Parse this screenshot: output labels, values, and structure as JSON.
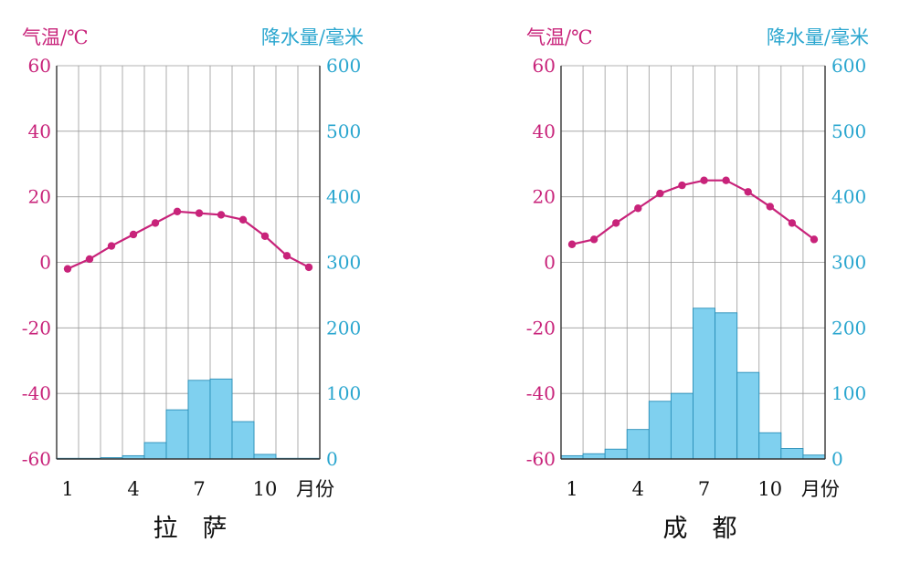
{
  "colors": {
    "temperature": "#c8237a",
    "precipitation": "#2aa6cf",
    "bar_fill": "#7fd0ef",
    "bar_stroke": "#2a8fb8",
    "grid": "#9a9a9a",
    "text": "#111111"
  },
  "chart_data": [
    {
      "type": "bar",
      "title": "拉　萨",
      "temp_axis_label": "气温/℃",
      "precip_axis_label": "降水量/毫米",
      "x_unit_label": "月份",
      "x_tick_labels": [
        "1",
        "4",
        "7",
        "10"
      ],
      "x_tick_months": [
        1,
        4,
        7,
        10
      ],
      "temp_ylim": [
        -60,
        60
      ],
      "temp_ticks": [
        60,
        40,
        20,
        0,
        -20,
        -40,
        -60
      ],
      "precip_ylim": [
        0,
        600
      ],
      "precip_ticks": [
        600,
        500,
        400,
        300,
        200,
        100,
        0
      ],
      "grid": true,
      "months": [
        1,
        2,
        3,
        4,
        5,
        6,
        7,
        8,
        9,
        10,
        11,
        12
      ],
      "series": [
        {
          "kind": "line",
          "values": [
            -2,
            1,
            5,
            8.5,
            12,
            15.5,
            15,
            14.5,
            13,
            8,
            2,
            -1.5
          ]
        },
        {
          "kind": "bar",
          "values": [
            1,
            1,
            2,
            5,
            25,
            75,
            120,
            122,
            57,
            7,
            1,
            1
          ]
        }
      ]
    },
    {
      "type": "bar",
      "title": "成　都",
      "temp_axis_label": "气温/℃",
      "precip_axis_label": "降水量/毫米",
      "x_unit_label": "月份",
      "x_tick_labels": [
        "1",
        "4",
        "7",
        "10"
      ],
      "x_tick_months": [
        1,
        4,
        7,
        10
      ],
      "temp_ylim": [
        -60,
        60
      ],
      "temp_ticks": [
        60,
        40,
        20,
        0,
        -20,
        -40,
        -60
      ],
      "precip_ylim": [
        0,
        600
      ],
      "precip_ticks": [
        600,
        500,
        400,
        300,
        200,
        100,
        0
      ],
      "grid": true,
      "months": [
        1,
        2,
        3,
        4,
        5,
        6,
        7,
        8,
        9,
        10,
        11,
        12
      ],
      "series": [
        {
          "kind": "line",
          "values": [
            5.5,
            7,
            12,
            16.5,
            21,
            23.5,
            25,
            25,
            21.5,
            17,
            12,
            7
          ]
        },
        {
          "kind": "bar",
          "values": [
            5,
            8,
            15,
            45,
            88,
            100,
            230,
            223,
            132,
            40,
            16,
            6
          ]
        }
      ]
    }
  ]
}
